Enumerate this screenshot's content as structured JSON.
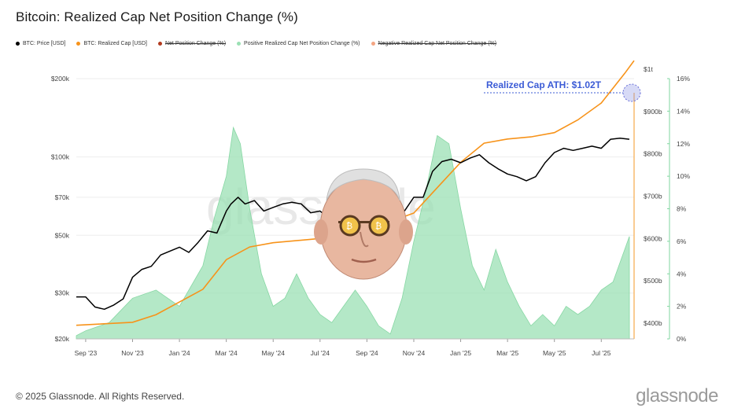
{
  "title": "Bitcoin: Realized Cap Net Position Change (%)",
  "legend": [
    {
      "label": "BTC: Price [USD]",
      "color": "#000000",
      "struck": false
    },
    {
      "label": "BTC: Realized Cap [USD]",
      "color": "#f7931a",
      "struck": false
    },
    {
      "label": "Net Position Change (%)",
      "color": "#b23a1e",
      "struck": true
    },
    {
      "label": "Positive Realized Cap Net Position Change (%)",
      "color": "#9be0b4",
      "struck": false
    },
    {
      "label": "Negative Realized Cap Net Position Change (%)",
      "color": "#f4a582",
      "struck": true
    }
  ],
  "watermark": "glassnode",
  "footer": {
    "copyright": "© 2025 Glassnode. All Rights Reserved.",
    "logo": "glassnode"
  },
  "chart_data": {
    "type": "line",
    "title": "Bitcoin: Realized Cap Net Position Change (%)",
    "x_ticks": [
      "Sep '23",
      "Nov '23",
      "Jan '24",
      "Mar '24",
      "May '24",
      "Jul '24",
      "Sep '24",
      "Nov '24",
      "Jan '25",
      "Mar '25",
      "May '25",
      "Jul '25"
    ],
    "left_axis": {
      "scale": "log",
      "ticks": [
        "$20k",
        "$30k",
        "$50k",
        "$70k",
        "$100k",
        "$200k"
      ],
      "values": [
        20000,
        30000,
        50000,
        70000,
        100000,
        200000
      ],
      "ylim": [
        20000,
        200000
      ]
    },
    "mid_axis": {
      "ticks": [
        "$400b",
        "$500b",
        "$600b",
        "$700b",
        "$800b",
        "$900b",
        "$1t"
      ],
      "values": [
        400,
        500,
        600,
        700,
        800,
        900,
        1000
      ],
      "unit": "billion USD"
    },
    "right_axis": {
      "ticks": [
        "0%",
        "2%",
        "4%",
        "6%",
        "8%",
        "10%",
        "12%",
        "14%",
        "16%"
      ],
      "values": [
        0,
        2,
        4,
        6,
        8,
        10,
        12,
        14,
        16
      ],
      "ylim": [
        0,
        16
      ]
    },
    "x_month_index": [
      0,
      2,
      4,
      6,
      8,
      10,
      12,
      14,
      16,
      18,
      20,
      22
    ],
    "series": [
      {
        "name": "BTC: Price [USD]",
        "color": "#000000",
        "axis": "left",
        "x": [
          -0.4,
          0.0,
          0.4,
          0.8,
          1.2,
          1.6,
          2.0,
          2.4,
          2.8,
          3.2,
          3.6,
          4.0,
          4.4,
          4.8,
          5.2,
          5.6,
          6.0,
          6.2,
          6.5,
          6.8,
          7.2,
          7.6,
          8.0,
          8.4,
          8.8,
          9.2,
          9.6,
          10.0,
          10.4,
          10.8,
          11.2,
          11.6,
          12.0,
          12.4,
          12.8,
          13.2,
          13.6,
          14.0,
          14.4,
          14.8,
          15.2,
          15.6,
          16.0,
          16.4,
          16.8,
          17.2,
          17.6,
          18.0,
          18.4,
          18.8,
          19.2,
          19.6,
          20.0,
          20.4,
          20.8,
          21.2,
          21.6,
          22.0,
          22.4,
          22.8,
          23.2
        ],
        "y": [
          29000,
          29000,
          26500,
          26000,
          27000,
          28500,
          34500,
          37000,
          38000,
          42000,
          43500,
          45000,
          43000,
          47000,
          52000,
          51000,
          62000,
          66000,
          70000,
          66000,
          68000,
          62000,
          64000,
          66000,
          67000,
          66000,
          61000,
          62000,
          58000,
          60000,
          64000,
          57000,
          55000,
          58000,
          56000,
          60000,
          62000,
          70000,
          70000,
          88000,
          96000,
          98000,
          95000,
          99000,
          102000,
          95000,
          90000,
          86000,
          84000,
          81000,
          84000,
          95000,
          104000,
          108000,
          106000,
          108000,
          110000,
          108000,
          117000,
          118000,
          117000
        ]
      },
      {
        "name": "BTC: Realized Cap [USD]",
        "color": "#f7931a",
        "axis": "mid",
        "unit": "billion USD",
        "x": [
          -0.4,
          2.0,
          3.0,
          4.0,
          5.0,
          6.0,
          7.0,
          8.0,
          10.0,
          12.0,
          14.0,
          15.0,
          16.0,
          17.0,
          18.0,
          19.0,
          20.0,
          21.0,
          22.0,
          23.0,
          23.4
        ],
        "y": [
          395,
          402,
          420,
          450,
          480,
          550,
          580,
          590,
          600,
          620,
          660,
          720,
          780,
          825,
          835,
          840,
          850,
          880,
          920,
          990,
          1020
        ]
      },
      {
        "name": "Positive Realized Cap Net Position Change (%)",
        "color": "#9be0b4",
        "axis": "right",
        "x": [
          -0.4,
          0.0,
          1.0,
          2.0,
          3.0,
          4.0,
          5.0,
          5.5,
          6.0,
          6.3,
          6.6,
          7.0,
          7.5,
          8.0,
          8.5,
          9.0,
          9.5,
          10.0,
          10.5,
          11.0,
          11.5,
          12.0,
          12.5,
          13.0,
          13.5,
          14.0,
          14.5,
          15.0,
          15.5,
          16.0,
          16.5,
          17.0,
          17.5,
          18.0,
          18.5,
          19.0,
          19.5,
          20.0,
          20.5,
          21.0,
          21.5,
          22.0,
          22.5,
          23.0,
          23.2
        ],
        "y": [
          0.2,
          0.5,
          1.0,
          2.5,
          3.0,
          2.0,
          4.5,
          7.5,
          10.0,
          13.0,
          12.0,
          8.0,
          4.0,
          2.0,
          2.5,
          4.0,
          2.5,
          1.5,
          1.0,
          2.0,
          3.0,
          2.0,
          0.8,
          0.3,
          2.5,
          6.0,
          9.0,
          12.5,
          12.0,
          8.0,
          4.5,
          3.0,
          5.5,
          3.5,
          2.0,
          0.8,
          1.5,
          0.8,
          2.0,
          1.5,
          2.0,
          3.0,
          3.5,
          5.5,
          6.3
        ]
      }
    ],
    "annotation": {
      "text": "Realized Cap ATH: $1.02T",
      "color": "#3b5bd6"
    }
  }
}
